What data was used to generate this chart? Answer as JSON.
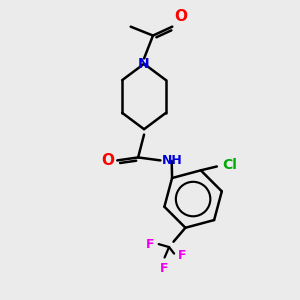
{
  "background_color": "#ebebeb",
  "bond_color": "#000000",
  "N_color": "#0000dd",
  "O_color": "#ff0000",
  "Cl_color": "#00aa00",
  "F_color": "#ee00ee",
  "line_width": 1.8,
  "figsize": [
    3.0,
    3.0
  ],
  "dpi": 100,
  "xlim": [
    0,
    10
  ],
  "ylim": [
    0,
    10
  ]
}
